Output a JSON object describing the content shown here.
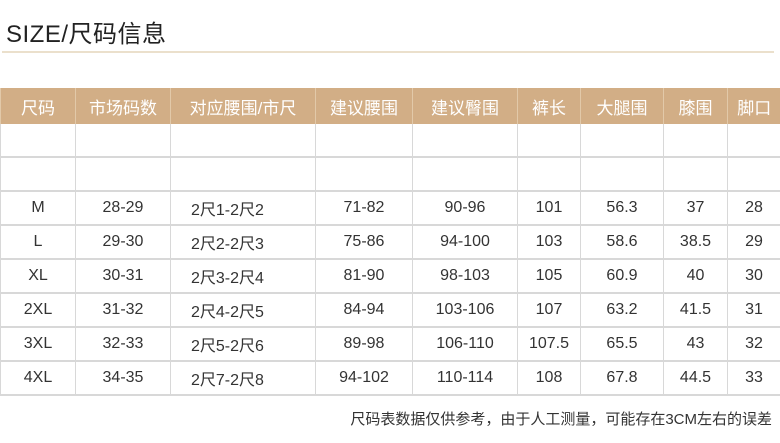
{
  "title": "SIZE/尺码信息",
  "table": {
    "headers": [
      "尺码",
      "市场码数",
      "对应腰围/市尺",
      "建议腰围",
      "建议臀围",
      "裤长",
      "大腿围",
      "膝围",
      "脚口"
    ],
    "rows": [
      [
        "",
        "",
        "",
        "",
        "",
        "",
        "",
        "",
        ""
      ],
      [
        "",
        "",
        "",
        "",
        "",
        "",
        "",
        "",
        ""
      ],
      [
        "M",
        "28-29",
        "2尺1-2尺2",
        "71-82",
        "90-96",
        "101",
        "56.3",
        "37",
        "28"
      ],
      [
        "L",
        "29-30",
        "2尺2-2尺3",
        "75-86",
        "94-100",
        "103",
        "58.6",
        "38.5",
        "29"
      ],
      [
        "XL",
        "30-31",
        "2尺3-2尺4",
        "81-90",
        "98-103",
        "105",
        "60.9",
        "40",
        "30"
      ],
      [
        "2XL",
        "31-32",
        "2尺4-2尺5",
        "84-94",
        "103-106",
        "107",
        "63.2",
        "41.5",
        "31"
      ],
      [
        "3XL",
        "32-33",
        "2尺5-2尺6",
        "89-98",
        "106-110",
        "107.5",
        "65.5",
        "43",
        "32"
      ],
      [
        "4XL",
        "34-35",
        "2尺7-2尺8",
        "94-102",
        "110-114",
        "108",
        "67.8",
        "44.5",
        "33"
      ]
    ]
  },
  "note": "尺码表数据仅供参考，由于人工测量，可能存在3CM左右的误差",
  "colors": {
    "header_bg": "#d2ae86",
    "header_text": "#ffffff",
    "rule": "#ebe0cc"
  }
}
